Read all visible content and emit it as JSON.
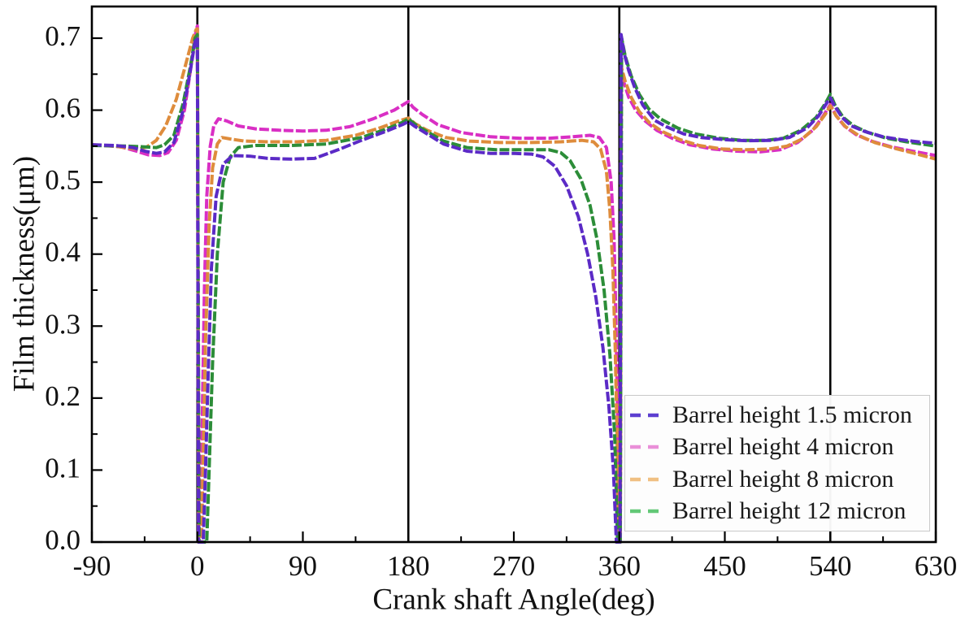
{
  "chart_data": {
    "type": "line",
    "title": "",
    "xlabel": "Crank shaft Angle(deg)",
    "ylabel": "Film thickness(μm)",
    "xlim": [
      -90,
      630
    ],
    "ylim": [
      0,
      0.744
    ],
    "x_major_ticks": [
      -90,
      0,
      90,
      180,
      270,
      360,
      450,
      540,
      630
    ],
    "x_minor_ticks": [
      -45,
      45,
      135,
      225,
      315,
      405,
      495,
      585
    ],
    "y_major_ticks": [
      0.0,
      0.1,
      0.2,
      0.3,
      0.4,
      0.5,
      0.6,
      0.7
    ],
    "y_minor_ticks": [
      0.05,
      0.15,
      0.25,
      0.35,
      0.45,
      0.55,
      0.65
    ],
    "reference_lines_x": [
      0,
      180,
      360,
      540
    ],
    "grid": false,
    "legend_position": "lower right",
    "background": "#ffffff",
    "axis_color": "#000000",
    "series": [
      {
        "name": "Barrel height 1.5 micron",
        "color": "#5b2ac6",
        "legend_color": "#5d3fd0",
        "draw_order": 4,
        "points": [
          [
            -90,
            0.552
          ],
          [
            -70,
            0.551
          ],
          [
            -55,
            0.548
          ],
          [
            -45,
            0.543
          ],
          [
            -35,
            0.54
          ],
          [
            -28,
            0.542
          ],
          [
            -20,
            0.555
          ],
          [
            -12,
            0.6
          ],
          [
            -6,
            0.655
          ],
          [
            -2,
            0.695
          ],
          [
            0,
            0.701
          ],
          [
            1,
            0.0
          ],
          [
            5,
            0.0
          ],
          [
            7,
            0.1
          ],
          [
            9,
            0.22
          ],
          [
            12,
            0.38
          ],
          [
            16,
            0.48
          ],
          [
            22,
            0.525
          ],
          [
            30,
            0.537
          ],
          [
            45,
            0.536
          ],
          [
            60,
            0.533
          ],
          [
            80,
            0.532
          ],
          [
            100,
            0.533
          ],
          [
            120,
            0.545
          ],
          [
            140,
            0.558
          ],
          [
            160,
            0.57
          ],
          [
            175,
            0.58
          ],
          [
            180,
            0.584
          ],
          [
            185,
            0.578
          ],
          [
            195,
            0.568
          ],
          [
            210,
            0.553
          ],
          [
            230,
            0.543
          ],
          [
            250,
            0.54
          ],
          [
            270,
            0.54
          ],
          [
            285,
            0.539
          ],
          [
            295,
            0.535
          ],
          [
            305,
            0.522
          ],
          [
            315,
            0.495
          ],
          [
            325,
            0.452
          ],
          [
            333,
            0.4
          ],
          [
            340,
            0.34
          ],
          [
            346,
            0.27
          ],
          [
            351,
            0.19
          ],
          [
            355,
            0.1
          ],
          [
            357.5,
            0.0
          ],
          [
            360.6,
            0.0
          ],
          [
            361.5,
            0.705
          ],
          [
            364,
            0.68
          ],
          [
            368,
            0.655
          ],
          [
            373,
            0.632
          ],
          [
            380,
            0.607
          ],
          [
            390,
            0.586
          ],
          [
            400,
            0.577
          ],
          [
            415,
            0.567
          ],
          [
            430,
            0.562
          ],
          [
            450,
            0.559
          ],
          [
            470,
            0.5575
          ],
          [
            490,
            0.558
          ],
          [
            505,
            0.562
          ],
          [
            520,
            0.575
          ],
          [
            530,
            0.592
          ],
          [
            537,
            0.61
          ],
          [
            540,
            0.617
          ],
          [
            544,
            0.605
          ],
          [
            550,
            0.59
          ],
          [
            558,
            0.578
          ],
          [
            570,
            0.57
          ],
          [
            585,
            0.563
          ],
          [
            600,
            0.559
          ],
          [
            615,
            0.556
          ],
          [
            630,
            0.554
          ]
        ]
      },
      {
        "name": "Barrel height 4 micron",
        "color": "#d92fc4",
        "legend_color": "#ea8fd8",
        "draw_order": 1,
        "points": [
          [
            -90,
            0.552
          ],
          [
            -65,
            0.549
          ],
          [
            -52,
            0.543
          ],
          [
            -42,
            0.538
          ],
          [
            -32,
            0.537
          ],
          [
            -25,
            0.541
          ],
          [
            -18,
            0.558
          ],
          [
            -11,
            0.6
          ],
          [
            -5,
            0.665
          ],
          [
            -1,
            0.712
          ],
          [
            0,
            0.717
          ],
          [
            1,
            0.0
          ],
          [
            2.5,
            0.0
          ],
          [
            4,
            0.15
          ],
          [
            6,
            0.35
          ],
          [
            8,
            0.48
          ],
          [
            11,
            0.55
          ],
          [
            14,
            0.578
          ],
          [
            18,
            0.588
          ],
          [
            25,
            0.585
          ],
          [
            35,
            0.578
          ],
          [
            50,
            0.574
          ],
          [
            70,
            0.572
          ],
          [
            90,
            0.571
          ],
          [
            110,
            0.572
          ],
          [
            130,
            0.577
          ],
          [
            150,
            0.588
          ],
          [
            168,
            0.6
          ],
          [
            178,
            0.61
          ],
          [
            180,
            0.612
          ],
          [
            184,
            0.604
          ],
          [
            192,
            0.594
          ],
          [
            205,
            0.58
          ],
          [
            225,
            0.569
          ],
          [
            250,
            0.563
          ],
          [
            275,
            0.561
          ],
          [
            300,
            0.561
          ],
          [
            320,
            0.563
          ],
          [
            335,
            0.565
          ],
          [
            343,
            0.562
          ],
          [
            349,
            0.548
          ],
          [
            353,
            0.5
          ],
          [
            355.5,
            0.42
          ],
          [
            357,
            0.32
          ],
          [
            358.5,
            0.18
          ],
          [
            359.7,
            0.0
          ],
          [
            360.8,
            0.0
          ],
          [
            361.6,
            0.655
          ],
          [
            364,
            0.638
          ],
          [
            368,
            0.618
          ],
          [
            374,
            0.6
          ],
          [
            382,
            0.585
          ],
          [
            392,
            0.572
          ],
          [
            405,
            0.561
          ],
          [
            420,
            0.552
          ],
          [
            440,
            0.546
          ],
          [
            460,
            0.543
          ],
          [
            480,
            0.542
          ],
          [
            497,
            0.545
          ],
          [
            512,
            0.555
          ],
          [
            525,
            0.572
          ],
          [
            534,
            0.592
          ],
          [
            540,
            0.608
          ],
          [
            545,
            0.592
          ],
          [
            552,
            0.578
          ],
          [
            562,
            0.566
          ],
          [
            575,
            0.557
          ],
          [
            592,
            0.549
          ],
          [
            610,
            0.543
          ],
          [
            630,
            0.537
          ]
        ]
      },
      {
        "name": "Barrel height 8 micron",
        "color": "#de8c3c",
        "legend_color": "#f0c083",
        "draw_order": 2,
        "points": [
          [
            -90,
            0.552
          ],
          [
            -70,
            0.55
          ],
          [
            -58,
            0.547
          ],
          [
            -50,
            0.546
          ],
          [
            -43,
            0.549
          ],
          [
            -35,
            0.558
          ],
          [
            -27,
            0.578
          ],
          [
            -18,
            0.615
          ],
          [
            -10,
            0.663
          ],
          [
            -4,
            0.7
          ],
          [
            -1,
            0.712
          ],
          [
            0,
            0.713
          ],
          [
            1.2,
            0.0
          ],
          [
            3.5,
            0.0
          ],
          [
            5,
            0.12
          ],
          [
            7,
            0.28
          ],
          [
            10,
            0.44
          ],
          [
            13,
            0.52
          ],
          [
            17,
            0.553
          ],
          [
            21,
            0.562
          ],
          [
            28,
            0.56
          ],
          [
            40,
            0.557
          ],
          [
            60,
            0.556
          ],
          [
            85,
            0.556
          ],
          [
            110,
            0.558
          ],
          [
            135,
            0.565
          ],
          [
            155,
            0.575
          ],
          [
            172,
            0.585
          ],
          [
            180,
            0.589
          ],
          [
            186,
            0.581
          ],
          [
            196,
            0.572
          ],
          [
            212,
            0.562
          ],
          [
            232,
            0.557
          ],
          [
            258,
            0.555
          ],
          [
            285,
            0.555
          ],
          [
            310,
            0.556
          ],
          [
            328,
            0.558
          ],
          [
            338,
            0.556
          ],
          [
            344,
            0.546
          ],
          [
            349,
            0.515
          ],
          [
            352,
            0.46
          ],
          [
            354.5,
            0.38
          ],
          [
            356.5,
            0.27
          ],
          [
            358,
            0.15
          ],
          [
            359.3,
            0.0
          ],
          [
            360.9,
            0.0
          ],
          [
            361.8,
            0.66
          ],
          [
            365,
            0.64
          ],
          [
            370,
            0.618
          ],
          [
            377,
            0.598
          ],
          [
            386,
            0.582
          ],
          [
            397,
            0.57
          ],
          [
            412,
            0.559
          ],
          [
            428,
            0.551
          ],
          [
            448,
            0.546
          ],
          [
            468,
            0.545
          ],
          [
            488,
            0.546
          ],
          [
            503,
            0.55
          ],
          [
            516,
            0.56
          ],
          [
            528,
            0.577
          ],
          [
            536,
            0.595
          ],
          [
            540,
            0.606
          ],
          [
            545,
            0.592
          ],
          [
            553,
            0.577
          ],
          [
            564,
            0.565
          ],
          [
            578,
            0.555
          ],
          [
            595,
            0.547
          ],
          [
            612,
            0.54
          ],
          [
            630,
            0.532
          ]
        ]
      },
      {
        "name": "Barrel height 12 micron",
        "color": "#2c8d38",
        "legend_color": "#63c877",
        "draw_order": 3,
        "points": [
          [
            -90,
            0.551
          ],
          [
            -60,
            0.55
          ],
          [
            -45,
            0.549
          ],
          [
            -35,
            0.548
          ],
          [
            -28,
            0.552
          ],
          [
            -20,
            0.565
          ],
          [
            -12,
            0.61
          ],
          [
            -6,
            0.66
          ],
          [
            -2,
            0.7
          ],
          [
            0,
            0.705
          ],
          [
            1.5,
            0.0
          ],
          [
            8,
            0.0
          ],
          [
            10,
            0.1
          ],
          [
            13,
            0.25
          ],
          [
            17,
            0.4
          ],
          [
            22,
            0.5
          ],
          [
            28,
            0.535
          ],
          [
            35,
            0.548
          ],
          [
            50,
            0.551
          ],
          [
            80,
            0.551
          ],
          [
            110,
            0.553
          ],
          [
            140,
            0.562
          ],
          [
            160,
            0.573
          ],
          [
            175,
            0.583
          ],
          [
            180,
            0.588
          ],
          [
            186,
            0.58
          ],
          [
            195,
            0.571
          ],
          [
            210,
            0.557
          ],
          [
            230,
            0.548
          ],
          [
            255,
            0.545
          ],
          [
            280,
            0.545
          ],
          [
            300,
            0.545
          ],
          [
            310,
            0.541
          ],
          [
            318,
            0.53
          ],
          [
            327,
            0.505
          ],
          [
            335,
            0.468
          ],
          [
            341,
            0.42
          ],
          [
            347,
            0.35
          ],
          [
            352,
            0.26
          ],
          [
            356,
            0.15
          ],
          [
            358.5,
            0.0
          ],
          [
            360.8,
            0.0
          ],
          [
            362,
            0.7
          ],
          [
            365,
            0.675
          ],
          [
            370,
            0.648
          ],
          [
            377,
            0.622
          ],
          [
            385,
            0.602
          ],
          [
            395,
            0.588
          ],
          [
            410,
            0.575
          ],
          [
            425,
            0.567
          ],
          [
            445,
            0.561
          ],
          [
            465,
            0.558
          ],
          [
            485,
            0.558
          ],
          [
            500,
            0.561
          ],
          [
            515,
            0.572
          ],
          [
            528,
            0.59
          ],
          [
            536,
            0.61
          ],
          [
            540,
            0.622
          ],
          [
            544,
            0.607
          ],
          [
            551,
            0.59
          ],
          [
            560,
            0.578
          ],
          [
            572,
            0.569
          ],
          [
            588,
            0.561
          ],
          [
            605,
            0.556
          ],
          [
            630,
            0.55
          ]
        ]
      }
    ]
  }
}
